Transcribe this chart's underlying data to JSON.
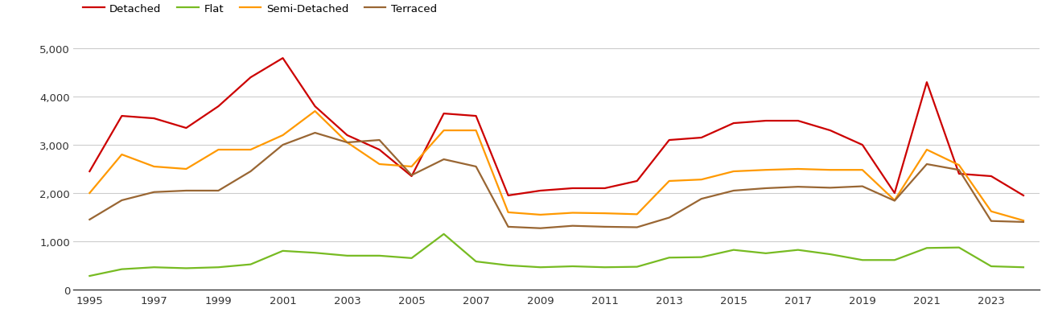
{
  "years": [
    1995,
    1996,
    1997,
    1998,
    1999,
    2000,
    2001,
    2002,
    2003,
    2004,
    2005,
    2006,
    2007,
    2008,
    2009,
    2010,
    2011,
    2012,
    2013,
    2014,
    2015,
    2016,
    2017,
    2018,
    2019,
    2020,
    2021,
    2022,
    2023,
    2024
  ],
  "detached": [
    2450,
    3600,
    3550,
    3350,
    3800,
    4400,
    4800,
    3800,
    3200,
    2900,
    2350,
    3650,
    3600,
    1950,
    2050,
    2100,
    2100,
    2250,
    3100,
    3150,
    3450,
    3500,
    3500,
    3300,
    3000,
    2000,
    4300,
    2400,
    2350,
    1950
  ],
  "flat": [
    280,
    420,
    460,
    440,
    460,
    520,
    800,
    760,
    700,
    700,
    650,
    1150,
    580,
    500,
    460,
    480,
    460,
    470,
    660,
    670,
    820,
    750,
    820,
    730,
    610,
    610,
    860,
    870,
    480,
    460
  ],
  "semi_detached": [
    2000,
    2800,
    2550,
    2500,
    2900,
    2900,
    3200,
    3700,
    3050,
    2600,
    2550,
    3300,
    3300,
    1600,
    1550,
    1590,
    1580,
    1560,
    2250,
    2280,
    2450,
    2480,
    2500,
    2480,
    2480,
    1850,
    2900,
    2580,
    1620,
    1430
  ],
  "terraced": [
    1450,
    1850,
    2020,
    2050,
    2050,
    2450,
    3000,
    3250,
    3050,
    3100,
    2370,
    2700,
    2550,
    1300,
    1270,
    1320,
    1300,
    1290,
    1490,
    1880,
    2050,
    2100,
    2130,
    2110,
    2140,
    1840,
    2600,
    2480,
    1420,
    1400
  ],
  "colors": {
    "detached": "#cc0000",
    "flat": "#77bb22",
    "semi_detached": "#ff9900",
    "terraced": "#996633"
  },
  "ylim": [
    0,
    5200
  ],
  "yticks": [
    0,
    1000,
    2000,
    3000,
    4000,
    5000
  ],
  "xtick_years": [
    1995,
    1997,
    1999,
    2001,
    2003,
    2005,
    2007,
    2009,
    2011,
    2013,
    2015,
    2017,
    2019,
    2021,
    2023
  ],
  "bg_color": "#ffffff",
  "grid_color": "#cccccc",
  "line_width": 1.6
}
